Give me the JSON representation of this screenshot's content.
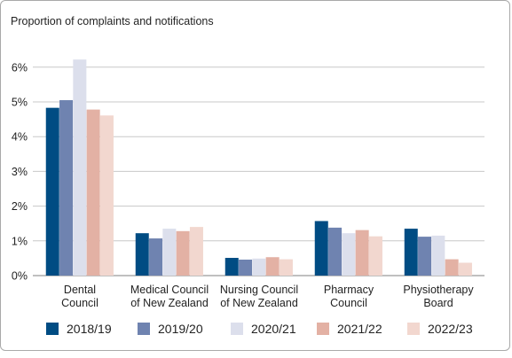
{
  "chart_data": {
    "type": "bar",
    "title": "Proportion of complaints and notifications",
    "xlabel": "",
    "ylabel": "",
    "ylim": [
      0,
      6.5
    ],
    "yticks": [
      "0%",
      "1%",
      "2%",
      "3%",
      "4%",
      "5%",
      "6%"
    ],
    "grid": true,
    "legend_position": "bottom",
    "categories": [
      [
        "Dental",
        "Council"
      ],
      [
        "Medical Council",
        "of New Zealand"
      ],
      [
        "Nursing Council",
        "of New Zealand"
      ],
      [
        "Pharmacy",
        "Council"
      ],
      [
        "Physiotherapy",
        "Board"
      ]
    ],
    "series": [
      {
        "name": "2018/19",
        "color": "#004c83",
        "values": [
          4.83,
          1.22,
          0.51,
          1.57,
          1.35
        ]
      },
      {
        "name": "2019/20",
        "color": "#6f83b0",
        "values": [
          5.05,
          1.07,
          0.46,
          1.38,
          1.12
        ]
      },
      {
        "name": "2020/21",
        "color": "#dcdfec",
        "values": [
          6.22,
          1.35,
          0.49,
          1.22,
          1.15
        ]
      },
      {
        "name": "2021/22",
        "color": "#e3b1a4",
        "values": [
          4.78,
          1.28,
          0.53,
          1.31,
          0.47
        ]
      },
      {
        "name": "2022/23",
        "color": "#f2d7cf",
        "values": [
          4.61,
          1.4,
          0.47,
          1.13,
          0.37
        ]
      }
    ]
  }
}
